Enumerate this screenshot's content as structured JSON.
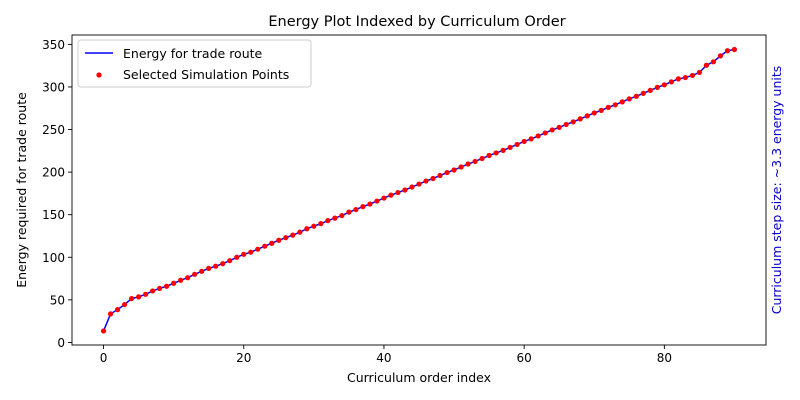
{
  "chart_data": {
    "type": "line",
    "title": "Energy Plot Indexed by Curriculum Order",
    "xlabel": "Curriculum order index",
    "ylabel": "Energy required for trade route",
    "right_label": "Curriculum step size: ~3.3 energy units",
    "xlim": [
      -4.5,
      94.5
    ],
    "ylim": [
      -3,
      361
    ],
    "xticks": [
      0,
      20,
      40,
      60,
      80
    ],
    "yticks": [
      0,
      50,
      100,
      150,
      200,
      250,
      300,
      350
    ],
    "grid": false,
    "legend_position": "upper-left",
    "series": [
      {
        "name": "Energy for trade route",
        "kind": "line",
        "color": "#0000ff",
        "x": [
          0,
          1,
          2,
          3,
          4,
          5,
          6,
          7,
          8,
          9,
          10,
          11,
          12,
          13,
          14,
          15,
          16,
          17,
          18,
          19,
          20,
          21,
          22,
          23,
          24,
          25,
          26,
          27,
          28,
          29,
          30,
          31,
          32,
          33,
          34,
          35,
          36,
          37,
          38,
          39,
          40,
          41,
          42,
          43,
          44,
          45,
          46,
          47,
          48,
          49,
          50,
          51,
          52,
          53,
          54,
          55,
          56,
          57,
          58,
          59,
          60,
          61,
          62,
          63,
          64,
          65,
          66,
          67,
          68,
          69,
          70,
          71,
          72,
          73,
          74,
          75,
          76,
          77,
          78,
          79,
          80,
          81,
          82,
          83,
          84,
          85,
          86,
          87,
          88,
          89,
          90
        ],
        "y": [
          13.5,
          33.5,
          38.5,
          44.5,
          51.5,
          53.5,
          56.5,
          60.5,
          63.5,
          66,
          69.5,
          73,
          76,
          80,
          83.5,
          87,
          89.5,
          92.5,
          96,
          100,
          103.5,
          106,
          109.5,
          113,
          116.5,
          120,
          123,
          126,
          129.5,
          133.5,
          136.5,
          139.5,
          143,
          146,
          149,
          153,
          156,
          159.5,
          162.5,
          166,
          169.5,
          173,
          176,
          179,
          182.5,
          186,
          189.5,
          192.5,
          196,
          199.5,
          202.5,
          206,
          209.5,
          212.5,
          216,
          219.5,
          222.5,
          225.5,
          229,
          232.5,
          236,
          239,
          242.5,
          246,
          249.5,
          252.5,
          256,
          259,
          262.5,
          266,
          269.5,
          272.5,
          276,
          279,
          282.5,
          286,
          289,
          292.5,
          296,
          299.5,
          302.5,
          306,
          309.5,
          311,
          313.5,
          317,
          325.5,
          329.5,
          336.5,
          342.5,
          344
        ]
      },
      {
        "name": "Selected Simulation Points",
        "kind": "scatter",
        "color": "#ff0000",
        "x": [
          0,
          1,
          2,
          3,
          4,
          5,
          6,
          7,
          8,
          9,
          10,
          11,
          12,
          13,
          14,
          15,
          16,
          17,
          18,
          19,
          20,
          21,
          22,
          23,
          24,
          25,
          26,
          27,
          28,
          29,
          30,
          31,
          32,
          33,
          34,
          35,
          36,
          37,
          38,
          39,
          40,
          41,
          42,
          43,
          44,
          45,
          46,
          47,
          48,
          49,
          50,
          51,
          52,
          53,
          54,
          55,
          56,
          57,
          58,
          59,
          60,
          61,
          62,
          63,
          64,
          65,
          66,
          67,
          68,
          69,
          70,
          71,
          72,
          73,
          74,
          75,
          76,
          77,
          78,
          79,
          80,
          81,
          82,
          83,
          84,
          85,
          86,
          87,
          88,
          89,
          90
        ],
        "y": [
          13.5,
          33.5,
          38.5,
          44.5,
          51.5,
          53.5,
          56.5,
          60.5,
          63.5,
          66,
          69.5,
          73,
          76,
          80,
          83.5,
          87,
          89.5,
          92.5,
          96,
          100,
          103.5,
          106,
          109.5,
          113,
          116.5,
          120,
          123,
          126,
          129.5,
          133.5,
          136.5,
          139.5,
          143,
          146,
          149,
          153,
          156,
          159.5,
          162.5,
          166,
          169.5,
          173,
          176,
          179,
          182.5,
          186,
          189.5,
          192.5,
          196,
          199.5,
          202.5,
          206,
          209.5,
          212.5,
          216,
          219.5,
          222.5,
          225.5,
          229,
          232.5,
          236,
          239,
          242.5,
          246,
          249.5,
          252.5,
          256,
          259,
          262.5,
          266,
          269.5,
          272.5,
          276,
          279,
          282.5,
          286,
          289,
          292.5,
          296,
          299.5,
          302.5,
          306,
          309.5,
          311,
          313.5,
          317,
          325.5,
          329.5,
          336.5,
          342.5,
          344
        ]
      }
    ]
  }
}
